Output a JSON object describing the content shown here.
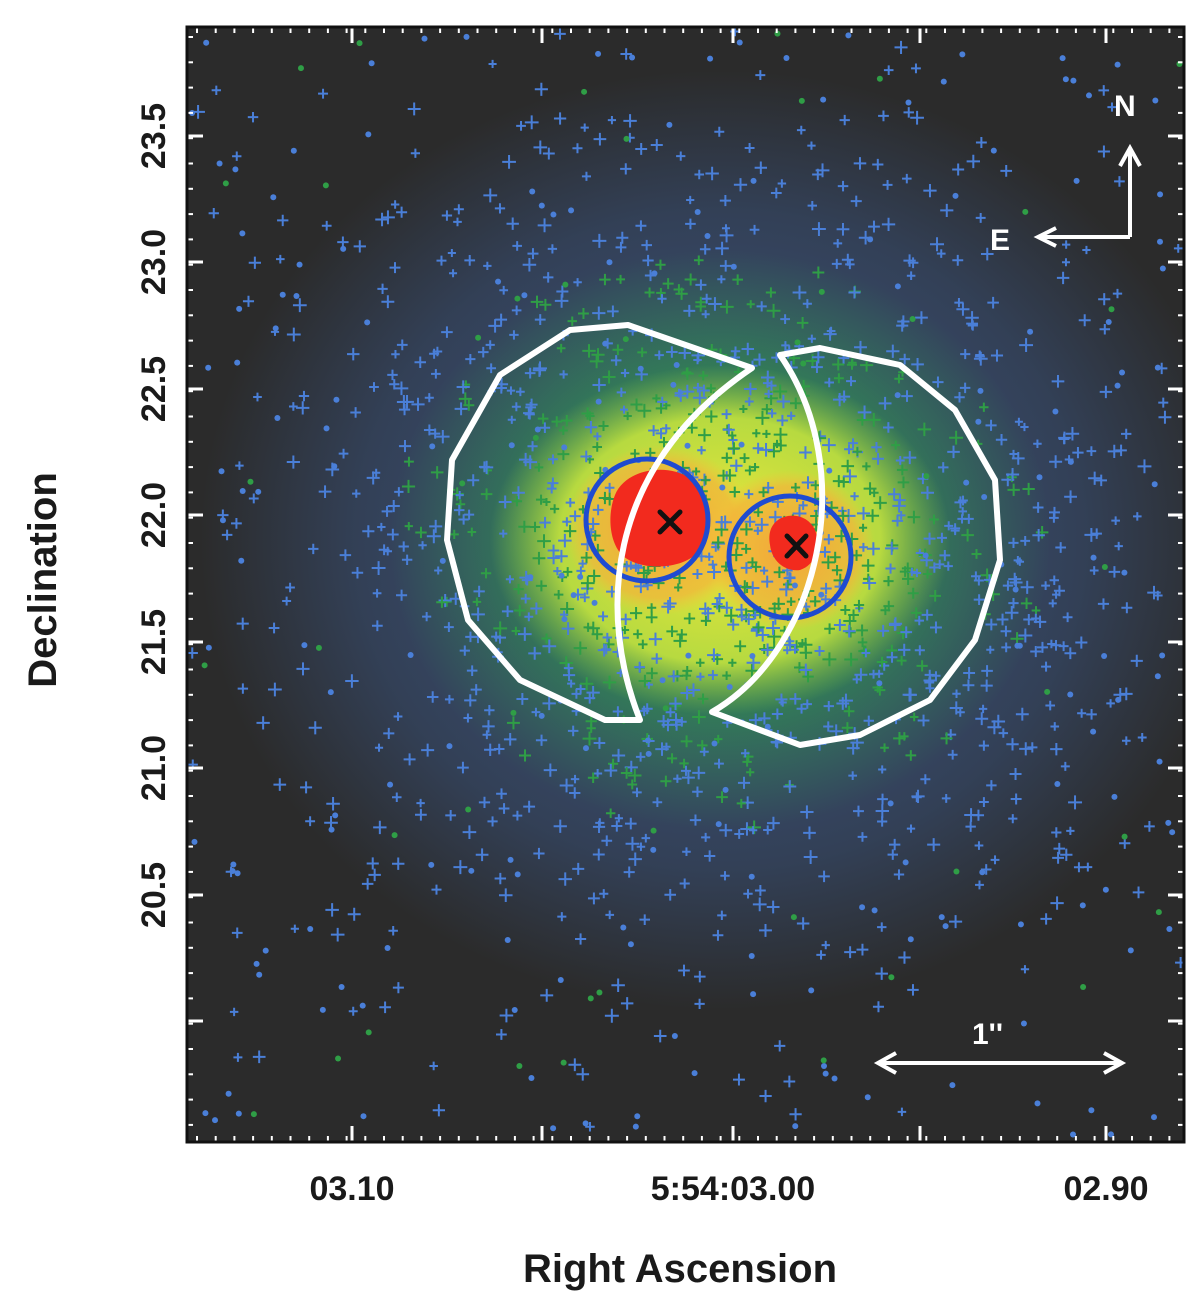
{
  "figure": {
    "x_axis": {
      "title": "Right Ascension",
      "tick_labels": [
        "03.10",
        "5:54:03.00",
        "02.90"
      ]
    },
    "y_axis": {
      "title": "Declination",
      "tick_labels": [
        "20.5",
        "21.0",
        "21.5",
        "22.0",
        "22.5",
        "23.0",
        "23.5"
      ]
    },
    "compass": {
      "north_label": "N",
      "east_label": "E"
    },
    "scale_bar": {
      "label": "1''"
    },
    "colors": {
      "background": "#2b2b2b",
      "faint_counts": "#4a7fd8",
      "low_counts": "#2f9e46",
      "mid_counts": "#d8f03a",
      "high_counts": "#f3a43a",
      "peak_counts": "#f22a1e",
      "source_circle": "#1f4bd0",
      "extraction_region": "#ffffff",
      "source_marker": "#111111"
    },
    "source_count": 2
  }
}
